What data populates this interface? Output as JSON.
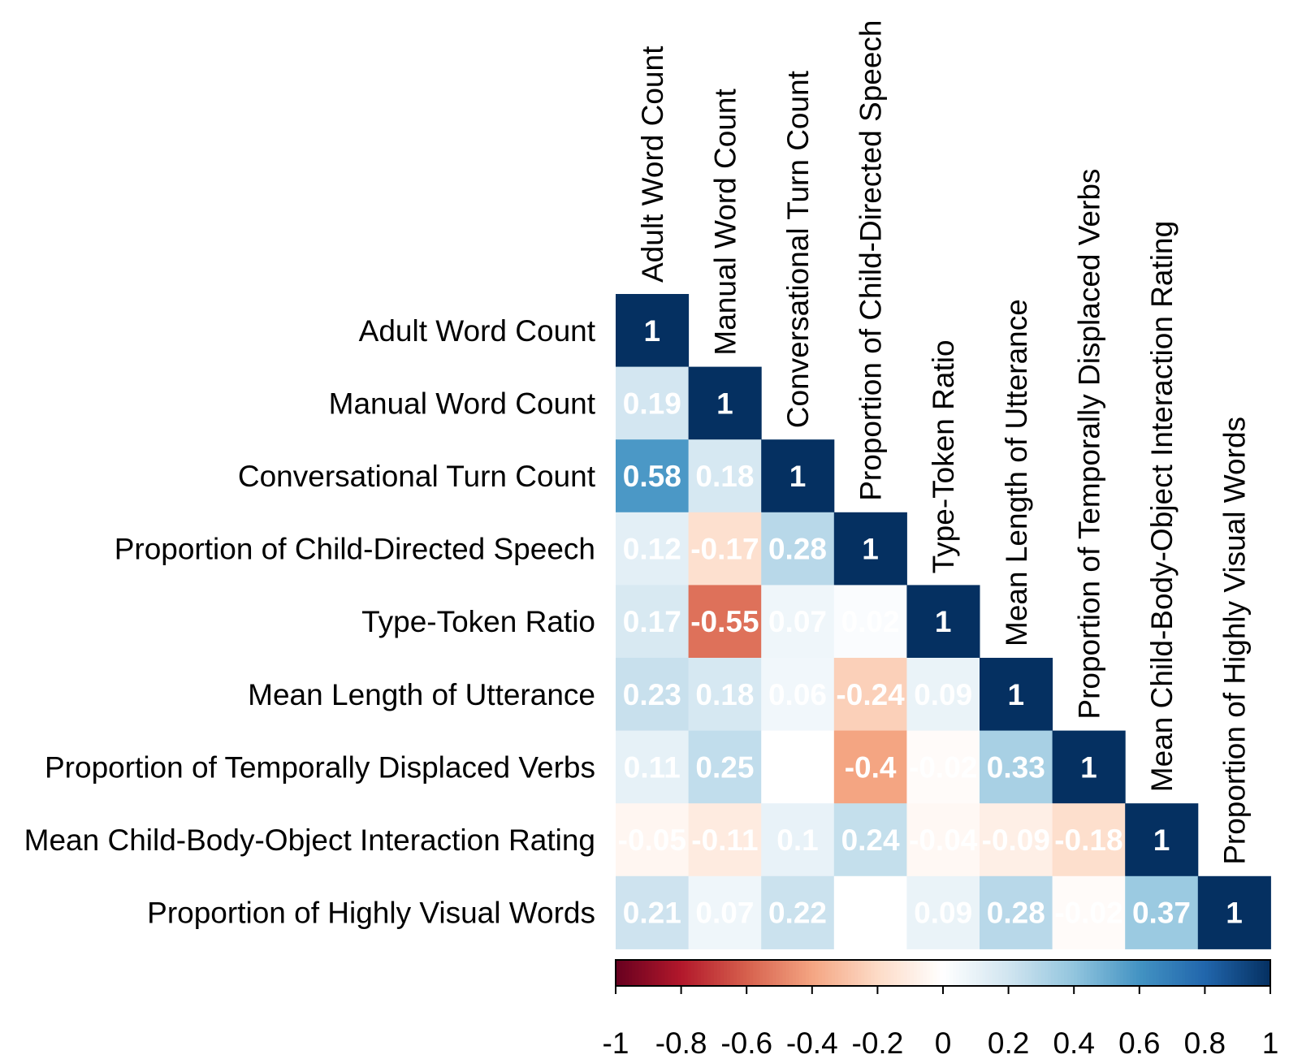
{
  "chart_data": {
    "type": "heatmap",
    "variables": [
      "Adult Word Count",
      "Manual Word Count",
      "Conversational Turn Count",
      "Proportion of Child-Directed Speech",
      "Type-Token Ratio",
      "Mean Length of Utterance",
      "Proportion of Temporally Displaced Verbs",
      "Mean Child-Body-Object Interaction Rating",
      "Proportion of Highly Visual Words"
    ],
    "matrix": [
      [
        1
      ],
      [
        0.19,
        1
      ],
      [
        0.58,
        0.18,
        1
      ],
      [
        0.12,
        -0.17,
        0.28,
        1
      ],
      [
        0.17,
        -0.55,
        0.07,
        0.02,
        1
      ],
      [
        0.23,
        0.18,
        0.06,
        -0.24,
        0.09,
        1
      ],
      [
        0.11,
        0.25,
        0,
        -0.4,
        -0.02,
        0.33,
        1
      ],
      [
        -0.05,
        -0.11,
        0.1,
        0.24,
        -0.04,
        -0.09,
        -0.18,
        1
      ],
      [
        0.21,
        0.07,
        0.22,
        0,
        0.09,
        0.28,
        -0.02,
        0.37,
        1
      ]
    ],
    "value_labels": [
      [
        "1"
      ],
      [
        "0.19",
        "1"
      ],
      [
        "0.58",
        "0.18",
        "1"
      ],
      [
        "0.12",
        "-0.17",
        "0.28",
        "1"
      ],
      [
        "0.17",
        "-0.55",
        "0.07",
        "0.02",
        "1"
      ],
      [
        "0.23",
        "0.18",
        "0.06",
        "-0.24",
        "0.09",
        "1"
      ],
      [
        "0.11",
        "0.25",
        "",
        "-0.4",
        "-0.02",
        "0.33",
        "1"
      ],
      [
        "-0.05",
        "-0.11",
        "0.1",
        "0.24",
        "-0.04",
        "-0.09",
        "-0.18",
        "1"
      ],
      [
        "0.21",
        "0.07",
        "0.22",
        "",
        "0.09",
        "0.28",
        "-0.02",
        "0.37",
        "1"
      ]
    ],
    "triangle": "lower",
    "colorbar": {
      "range": [
        -1,
        1
      ],
      "ticks": [
        -1,
        -0.8,
        -0.6,
        -0.4,
        -0.2,
        0,
        0.2,
        0.4,
        0.6,
        0.8,
        1
      ],
      "tick_labels": [
        "-1",
        "-0.8",
        "-0.6",
        "-0.4",
        "-0.2",
        "0",
        "0.2",
        "0.4",
        "0.6",
        "0.8",
        "1"
      ],
      "placement": "bottom"
    },
    "colors": {
      "negative": [
        "#67001f",
        "#b2182b",
        "#d6604d",
        "#f4a582",
        "#fddbc7"
      ],
      "neutral": "#ffffff",
      "positive": [
        "#d1e5f0",
        "#92c5de",
        "#4393c3",
        "#2166ac",
        "#053061"
      ]
    },
    "legend": "bottom"
  }
}
